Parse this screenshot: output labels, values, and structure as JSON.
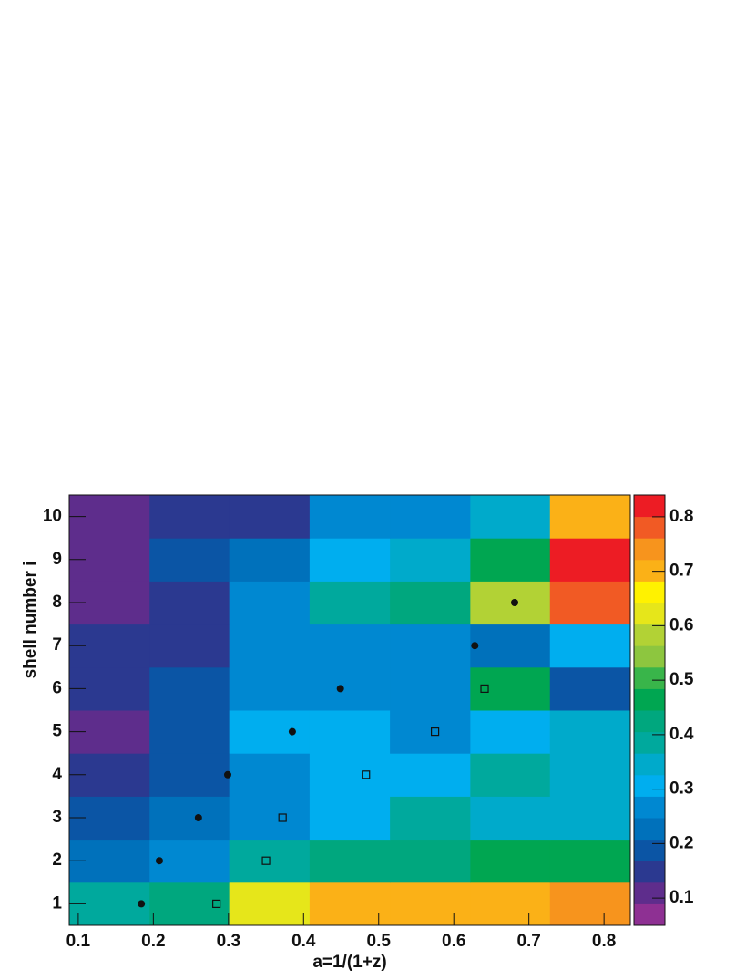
{
  "chart_data": {
    "type": "heatmap",
    "x_label": "a=1/(1+z)",
    "y_label": "shell number i",
    "xbins": [
      0.088,
      0.195,
      0.301,
      0.408,
      0.515,
      0.622,
      0.728,
      0.835
    ],
    "y": [
      1,
      2,
      3,
      4,
      5,
      6,
      7,
      8,
      9,
      10
    ],
    "z": [
      [
        0.39,
        0.43,
        0.63,
        0.71,
        0.71,
        0.71,
        0.74
      ],
      [
        0.23,
        0.27,
        0.39,
        0.43,
        0.43,
        0.47,
        0.47
      ],
      [
        0.19,
        0.23,
        0.27,
        0.31,
        0.39,
        0.35,
        0.35
      ],
      [
        0.15,
        0.19,
        0.27,
        0.31,
        0.31,
        0.39,
        0.35
      ],
      [
        0.11,
        0.19,
        0.31,
        0.31,
        0.27,
        0.31,
        0.35
      ],
      [
        0.15,
        0.19,
        0.27,
        0.27,
        0.27,
        0.47,
        0.19
      ],
      [
        0.15,
        0.15,
        0.27,
        0.27,
        0.27,
        0.23,
        0.31
      ],
      [
        0.11,
        0.15,
        0.27,
        0.39,
        0.43,
        0.59,
        0.78
      ],
      [
        0.11,
        0.19,
        0.23,
        0.31,
        0.35,
        0.47,
        0.82
      ],
      [
        0.11,
        0.15,
        0.15,
        0.27,
        0.27,
        0.35,
        0.71
      ]
    ],
    "xlim": [
      0.088,
      0.835
    ],
    "ylim": [
      0.5,
      10.5
    ],
    "zlim": [
      0.05,
      0.84
    ],
    "xticks": [
      0.1,
      0.2,
      0.3,
      0.4,
      0.5,
      0.6,
      0.7,
      0.8
    ],
    "yticks": [
      1,
      2,
      3,
      4,
      5,
      6,
      7,
      8,
      9,
      10
    ],
    "zticks": [
      0.1,
      0.2,
      0.3,
      0.4,
      0.5,
      0.6,
      0.7,
      0.8
    ],
    "colors": [
      "#8e3093",
      "#5e2d8c",
      "#2b3990",
      "#0b55a5",
      "#0071bb",
      "#0088d1",
      "#00aeef",
      "#00aacb",
      "#00a99d",
      "#00a77e",
      "#00a651",
      "#39b54a",
      "#8dc63f",
      "#b2d235",
      "#e6e61a",
      "#fff200",
      "#fbb117",
      "#f7941d",
      "#f15a24",
      "#ed1c24"
    ],
    "markers": [
      {
        "marker": "circle",
        "color": "#111111",
        "x": [
          0.184,
          0.208,
          0.26,
          0.299,
          0.385,
          0.449,
          0.628,
          0.681
        ],
        "y": [
          1,
          2,
          3,
          4,
          5,
          6,
          7,
          8
        ]
      },
      {
        "marker": "square",
        "color": "#111111",
        "x": [
          0.284,
          0.35,
          0.372,
          0.483,
          0.575,
          0.641
        ],
        "y": [
          1,
          2,
          3,
          4,
          5,
          6
        ]
      }
    ]
  }
}
